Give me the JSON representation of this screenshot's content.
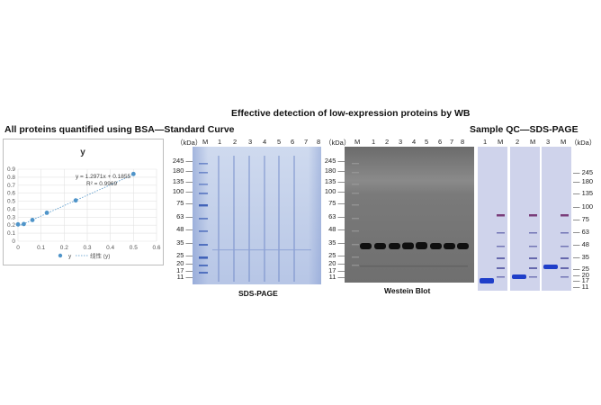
{
  "header": {
    "main_title": "Effective detection of low-expression proteins by WB",
    "left_title": "All proteins quantified using BSA—Standard Curve",
    "right_title": "Sample QC—SDS-PAGE"
  },
  "chart_data": {
    "type": "scatter",
    "title": "y",
    "equation": "y = 1.2971x + 0.1855",
    "r_squared": "R² = 0.9969",
    "x_ticks": [
      "0",
      "0.1",
      "0.2",
      "0.3",
      "0.4",
      "0.5",
      "0.6"
    ],
    "y_ticks": [
      "0",
      "0.1",
      "0.2",
      "0.3",
      "0.4",
      "0.5",
      "0.6",
      "0.7",
      "0.8",
      "0.9"
    ],
    "xlim": [
      0,
      0.6
    ],
    "ylim": [
      0,
      0.9
    ],
    "grid": true,
    "points": [
      {
        "x": 0.0,
        "y": 0.21
      },
      {
        "x": 0.025,
        "y": 0.215
      },
      {
        "x": 0.0625,
        "y": 0.265
      },
      {
        "x": 0.125,
        "y": 0.355
      },
      {
        "x": 0.25,
        "y": 0.51
      },
      {
        "x": 0.5,
        "y": 0.84
      }
    ],
    "trend": {
      "slope": 1.2971,
      "intercept": 0.1855
    },
    "legend": {
      "series": "y",
      "trend": "线性 (y)"
    },
    "colors": {
      "point": "#4f94c9",
      "trend": "#4f94c9",
      "grid": "#e3e3e3"
    }
  },
  "sds_page": {
    "caption": "SDS-PAGE",
    "unit": "（kDa）",
    "lanes": [
      "M",
      "1",
      "2",
      "3",
      "4",
      "5",
      "6",
      "7",
      "8"
    ],
    "markers": [
      "245",
      "180",
      "135",
      "100",
      "75",
      "63",
      "48",
      "35",
      "25",
      "20",
      "17",
      "11"
    ]
  },
  "western_blot": {
    "caption": "Westein Blot",
    "unit": "（kDa）",
    "lanes": [
      "M",
      "1",
      "2",
      "3",
      "4",
      "5",
      "6",
      "7",
      "8"
    ],
    "markers": [
      "245",
      "180",
      "135",
      "100",
      "75",
      "63",
      "48",
      "35",
      "25",
      "20",
      "17",
      "11"
    ],
    "band_kda": "35"
  },
  "sample_qc": {
    "unit": "（kDa）",
    "panels": [
      {
        "lanes": [
          "1",
          "M"
        ]
      },
      {
        "lanes": [
          "2",
          "M"
        ]
      },
      {
        "lanes": [
          "3",
          "M"
        ]
      }
    ],
    "markers": [
      "245",
      "180",
      "135",
      "100",
      "75",
      "63",
      "48",
      "35",
      "25",
      "20",
      "17",
      "11"
    ]
  },
  "colors": {
    "gel_bg": "#c7d3ea",
    "blot_bg": "#707070",
    "band_blue": "#1e3fa3",
    "blot_band": "#101010"
  }
}
